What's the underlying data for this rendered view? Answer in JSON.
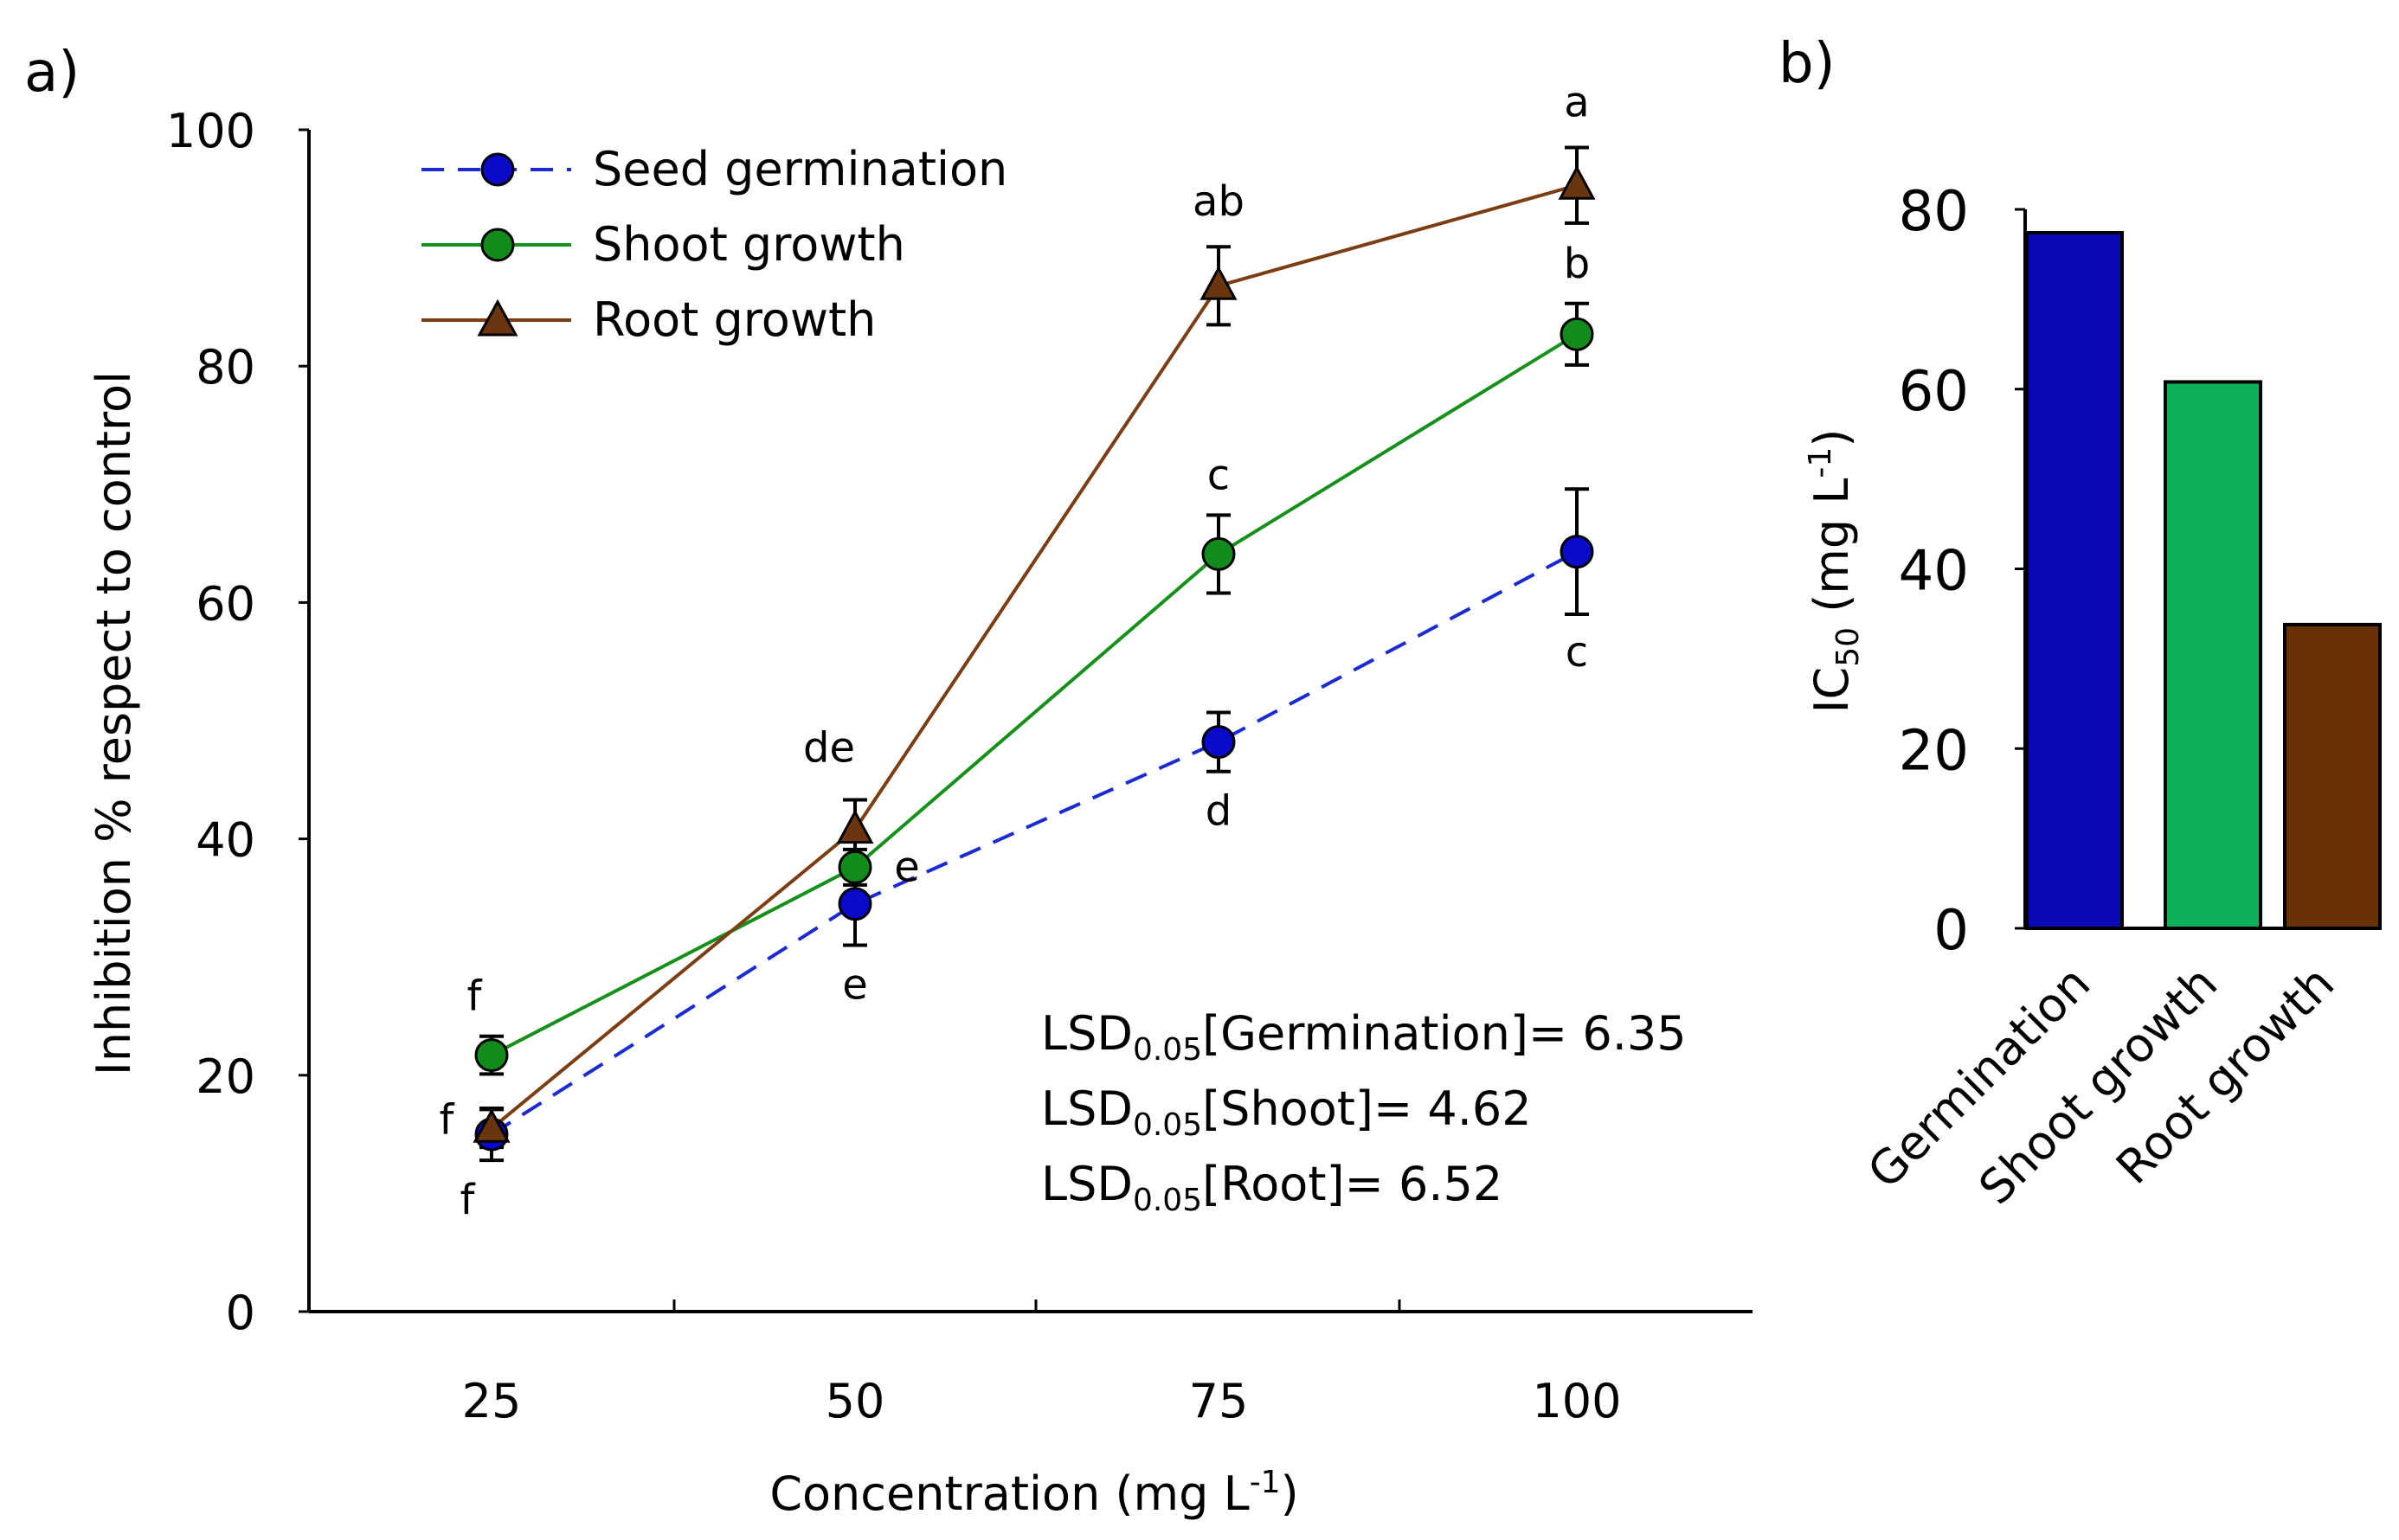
{
  "chart_data": [
    {
      "panel": "a)",
      "type": "line",
      "xlabel": "Concentration (mg L",
      "xlabel_sup": "-1",
      "xlabel_end": ")",
      "ylabel": "Inhibition % respect to control",
      "ylim": [
        0,
        100
      ],
      "yticks": [
        0,
        20,
        40,
        60,
        80,
        100
      ],
      "x": [
        25,
        50,
        75,
        100
      ],
      "legend_position": "top-left",
      "series": [
        {
          "name": "Seed germination",
          "color": "#1a2bd1",
          "fill": "#0a0ac8",
          "marker": "circle",
          "line_style": "dashed",
          "values": [
            15,
            34.5,
            48.2,
            64.3
          ],
          "errors": [
            2.2,
            3.5,
            2.5,
            5.3
          ],
          "letters": [
            "f",
            "e",
            "d",
            "c"
          ]
        },
        {
          "name": "Shoot growth",
          "color": "#15901a",
          "fill": "#138a1c",
          "marker": "circle",
          "line_style": "solid",
          "values": [
            21.7,
            37.6,
            64.1,
            82.7
          ],
          "errors": [
            1.6,
            1.5,
            3.3,
            2.6
          ],
          "letters": [
            "f",
            "e",
            "c",
            "b"
          ]
        },
        {
          "name": "Root growth",
          "color": "#7b3d12",
          "fill": "#6b3510",
          "marker": "triangle",
          "line_style": "solid",
          "values": [
            15.5,
            40.8,
            86.8,
            95.3
          ],
          "errors": [
            1.6,
            2.5,
            3.3,
            3.2
          ],
          "letters": [
            "f",
            "de",
            "ab",
            "a"
          ]
        }
      ],
      "annotations": [
        {
          "prefix": "LSD",
          "sub": "0.05",
          "rest": "[Germination]= 6.35"
        },
        {
          "prefix": "LSD",
          "sub": "0.05",
          "rest": "[Shoot]= 4.62"
        },
        {
          "prefix": "LSD",
          "sub": "0.05",
          "rest": "[Root]= 6.52"
        }
      ]
    },
    {
      "panel": "b)",
      "type": "bar",
      "ylabel": "IC",
      "ylabel_sub": "50",
      "ylabel_unit": " (mg L",
      "ylabel_sup": "-1",
      "ylabel_end": ")",
      "ylim": [
        0,
        80
      ],
      "yticks": [
        0,
        20,
        40,
        60,
        80
      ],
      "categories": [
        "Germination",
        "Shoot growth",
        "Root growth"
      ],
      "values": [
        77.4,
        60.8,
        33.8
      ],
      "colors": [
        "#0a0ab4",
        "#0db15a",
        "#6a3204"
      ]
    }
  ]
}
